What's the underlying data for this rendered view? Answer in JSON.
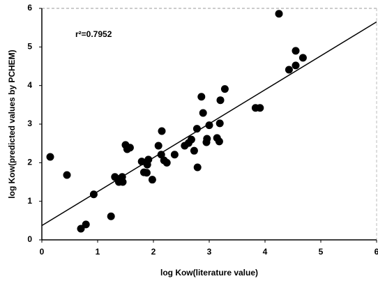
{
  "chart_data": {
    "type": "scatter",
    "xlabel": "log Kow(literature value)",
    "ylabel": "log Kow(predicted values by PCHEM)",
    "annotation": "r²=0.7952",
    "x": [
      0.15,
      0.45,
      0.7,
      0.79,
      0.93,
      1.24,
      1.31,
      1.38,
      1.41,
      1.44,
      1.45,
      1.5,
      1.53,
      1.58,
      1.79,
      1.83,
      1.88,
      1.89,
      1.91,
      1.98,
      2.09,
      2.15,
      2.14,
      2.19,
      2.24,
      2.38,
      2.56,
      2.63,
      2.68,
      2.73,
      2.79,
      2.78,
      2.86,
      2.89,
      2.95,
      2.96,
      3.0,
      3.14,
      3.18,
      3.19,
      3.2,
      3.28,
      3.83,
      3.91,
      4.25,
      4.43,
      4.55,
      4.55,
      4.68
    ],
    "values": [
      2.15,
      1.68,
      0.29,
      0.4,
      1.18,
      0.61,
      1.63,
      1.5,
      1.59,
      1.63,
      1.5,
      2.46,
      2.35,
      2.39,
      2.03,
      1.75,
      1.74,
      1.95,
      2.08,
      1.56,
      2.44,
      2.82,
      2.21,
      2.06,
      2.0,
      2.21,
      2.44,
      2.51,
      2.6,
      2.31,
      1.88,
      2.88,
      3.71,
      3.29,
      2.53,
      2.62,
      2.97,
      2.64,
      2.55,
      3.02,
      3.62,
      3.91,
      3.42,
      3.42,
      5.86,
      4.41,
      4.52,
      4.9,
      4.72
    ],
    "color": "#000000",
    "trendline": {
      "x": [
        0,
        6
      ],
      "y": [
        0.37,
        5.65
      ]
    },
    "xlim": [
      0,
      6
    ],
    "ylim": [
      0,
      6
    ],
    "xticks": [
      0,
      1,
      2,
      3,
      4,
      5,
      6
    ],
    "yticks": [
      0,
      1,
      2,
      3,
      4,
      5,
      6
    ]
  }
}
